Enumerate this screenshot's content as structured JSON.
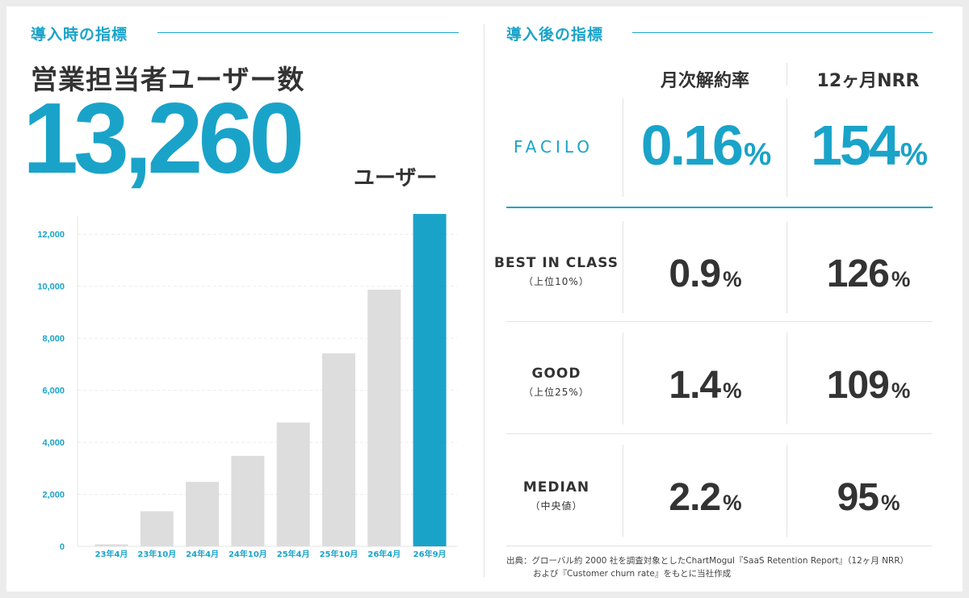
{
  "left_section": {
    "title": "導入時の指標",
    "metric_title": "営業担当者ユーザー数",
    "big_number": "13,260",
    "big_unit": "ユーザー"
  },
  "chart_data": {
    "type": "bar",
    "categories": [
      "23年4月",
      "23年10月",
      "24年4月",
      "24年10月",
      "25年4月",
      "25年10月",
      "26年4月",
      "26年9月"
    ],
    "values": [
      80,
      1350,
      2480,
      3480,
      4760,
      7420,
      9870,
      12780
    ],
    "highlight_index": 7,
    "ylim": [
      0,
      13000
    ],
    "yticks": [
      0,
      2000,
      4000,
      6000,
      8000,
      10000,
      12000
    ],
    "ytick_labels": [
      "0",
      "2,000",
      "4,000",
      "6,000",
      "8,000",
      "10,000",
      "12,000"
    ],
    "grid": true,
    "colors": {
      "bar": "#dddddd",
      "highlight": "#1aa3c9",
      "tick_label": "#1aa3c9"
    }
  },
  "right_section": {
    "title": "導入後の指標",
    "columns": [
      "月次解約率",
      "12ヶ月NRR"
    ],
    "brand": "FACILO",
    "brand_churn": "0.16",
    "brand_nrr": "154",
    "percent_sign": "%",
    "rows": [
      {
        "label": "BEST IN CLASS",
        "sub": "（上位10%）",
        "churn": "0.9",
        "nrr": "126"
      },
      {
        "label": "GOOD",
        "sub": "（上位25%）",
        "churn": "1.4",
        "nrr": "109"
      },
      {
        "label": "MEDIAN",
        "sub": "（中央値）",
        "churn": "2.2",
        "nrr": "95"
      }
    ],
    "source_line1": "出典：グローバル約 2000 社を調査対象としたChartMogul『SaaS Retention Report』（12ヶ月 NRR）",
    "source_line2": "および『Customer churn rate』をもとに当社作成"
  },
  "colors": {
    "accent": "#1aa3c9",
    "text": "#333333",
    "background": "#ececec"
  }
}
